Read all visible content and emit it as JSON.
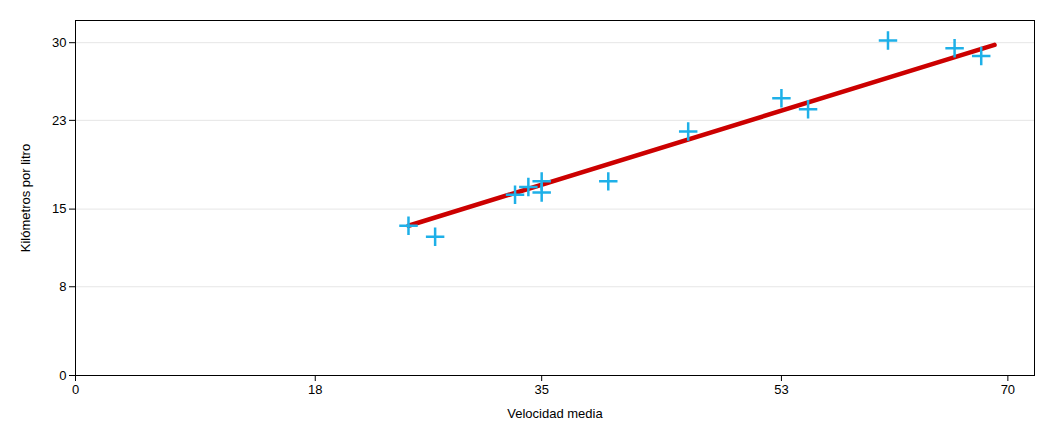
{
  "chart_data": {
    "type": "scatter",
    "xlabel": "Velocidad media",
    "ylabel": "Kilómetros por litro",
    "xlim": [
      0,
      72
    ],
    "ylim": [
      0,
      32
    ],
    "xticks": [
      0,
      18,
      35,
      53,
      70
    ],
    "yticks": [
      0,
      8,
      15,
      23,
      30
    ],
    "grid": "y",
    "series": [
      {
        "type": "line",
        "color": "#CC0000",
        "x": [
          25,
          69
        ],
        "values": [
          13.5,
          29.8
        ]
      },
      {
        "type": "scatter",
        "color": "#1EB0E8",
        "marker": "plus",
        "x": [
          25,
          27,
          33,
          34,
          35,
          35,
          40,
          46,
          53,
          55,
          61,
          66,
          68
        ],
        "values": [
          13.5,
          12.5,
          16.3,
          17.0,
          17.5,
          16.5,
          17.5,
          22.0,
          25.0,
          24.0,
          30.2,
          29.5,
          28.8
        ]
      }
    ]
  }
}
